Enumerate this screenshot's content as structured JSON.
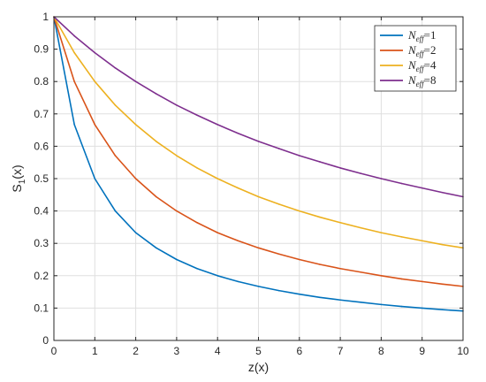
{
  "chart_data": {
    "type": "line",
    "title": "",
    "xlabel": "z(x)",
    "ylabel": "S_1(x)",
    "ylabel_main": "S",
    "ylabel_sub": "1",
    "ylabel_tail": "(x)",
    "xlim": [
      0,
      10
    ],
    "ylim": [
      0,
      1
    ],
    "xticks": [
      "0",
      "1",
      "2",
      "3",
      "4",
      "5",
      "6",
      "7",
      "8",
      "9",
      "10"
    ],
    "yticks": [
      "0",
      "0.1",
      "0.2",
      "0.3",
      "0.4",
      "0.5",
      "0.6",
      "0.7",
      "0.8",
      "0.9",
      "1"
    ],
    "grid": true,
    "legend_position": "top-right",
    "x": [
      0,
      0.5,
      1,
      1.5,
      2,
      2.5,
      3,
      3.5,
      4,
      4.5,
      5,
      5.5,
      6,
      6.5,
      7,
      7.5,
      8,
      8.5,
      9,
      9.5,
      10
    ],
    "series": [
      {
        "name": "N_eff = 1",
        "legend_main": "N",
        "legend_sub": "eff",
        "legend_tail": "=1",
        "color": "#0072BD",
        "values": [
          1.0,
          0.667,
          0.5,
          0.4,
          0.333,
          0.286,
          0.25,
          0.222,
          0.2,
          0.182,
          0.167,
          0.154,
          0.143,
          0.133,
          0.125,
          0.118,
          0.111,
          0.105,
          0.1,
          0.095,
          0.091
        ]
      },
      {
        "name": "N_eff = 2",
        "legend_main": "N",
        "legend_sub": "eff",
        "legend_tail": "=2",
        "color": "#D95319",
        "values": [
          1.0,
          0.8,
          0.667,
          0.571,
          0.5,
          0.444,
          0.4,
          0.364,
          0.333,
          0.308,
          0.286,
          0.267,
          0.25,
          0.235,
          0.222,
          0.211,
          0.2,
          0.19,
          0.182,
          0.174,
          0.167
        ]
      },
      {
        "name": "N_eff = 4",
        "legend_main": "N",
        "legend_sub": "eff",
        "legend_tail": "=4",
        "color": "#EDB120",
        "values": [
          1.0,
          0.889,
          0.8,
          0.727,
          0.667,
          0.615,
          0.571,
          0.533,
          0.5,
          0.471,
          0.444,
          0.421,
          0.4,
          0.381,
          0.364,
          0.348,
          0.333,
          0.32,
          0.308,
          0.296,
          0.286
        ]
      },
      {
        "name": "N_eff = 8",
        "legend_main": "N",
        "legend_sub": "eff",
        "legend_tail": "=8",
        "color": "#7E2F8E",
        "values": [
          1.0,
          0.941,
          0.889,
          0.842,
          0.8,
          0.762,
          0.727,
          0.696,
          0.667,
          0.64,
          0.615,
          0.593,
          0.571,
          0.552,
          0.533,
          0.516,
          0.5,
          0.485,
          0.471,
          0.457,
          0.444
        ]
      }
    ]
  }
}
